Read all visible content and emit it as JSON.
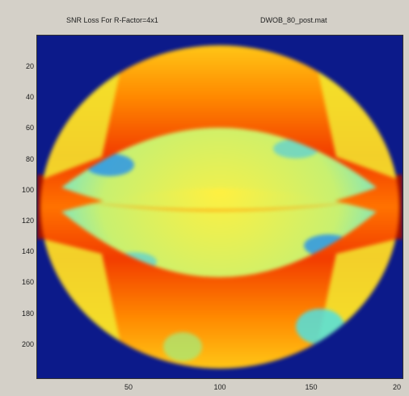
{
  "chart_data": {
    "type": "heatmap",
    "title_left": "SNR Loss For R-Factor=4x1",
    "title_right": "DWOB_80_post.mat",
    "y_ticks": [
      "20",
      "40",
      "60",
      "80",
      "100",
      "120",
      "140",
      "160",
      "180",
      "200"
    ],
    "x_ticks": [
      "50",
      "100",
      "150",
      "20"
    ],
    "xlim": [
      0,
      200
    ],
    "ylim": [
      200,
      0
    ],
    "colormap": "jet",
    "colors": {
      "background": "#0c1a8a",
      "high": "#a01000",
      "upper_high": "#f03a00",
      "mid_high": "#ff9a00",
      "mid": "#f4e830",
      "mid_low": "#b8f070",
      "low": "#40d8f0",
      "lower": "#2090f0"
    }
  }
}
